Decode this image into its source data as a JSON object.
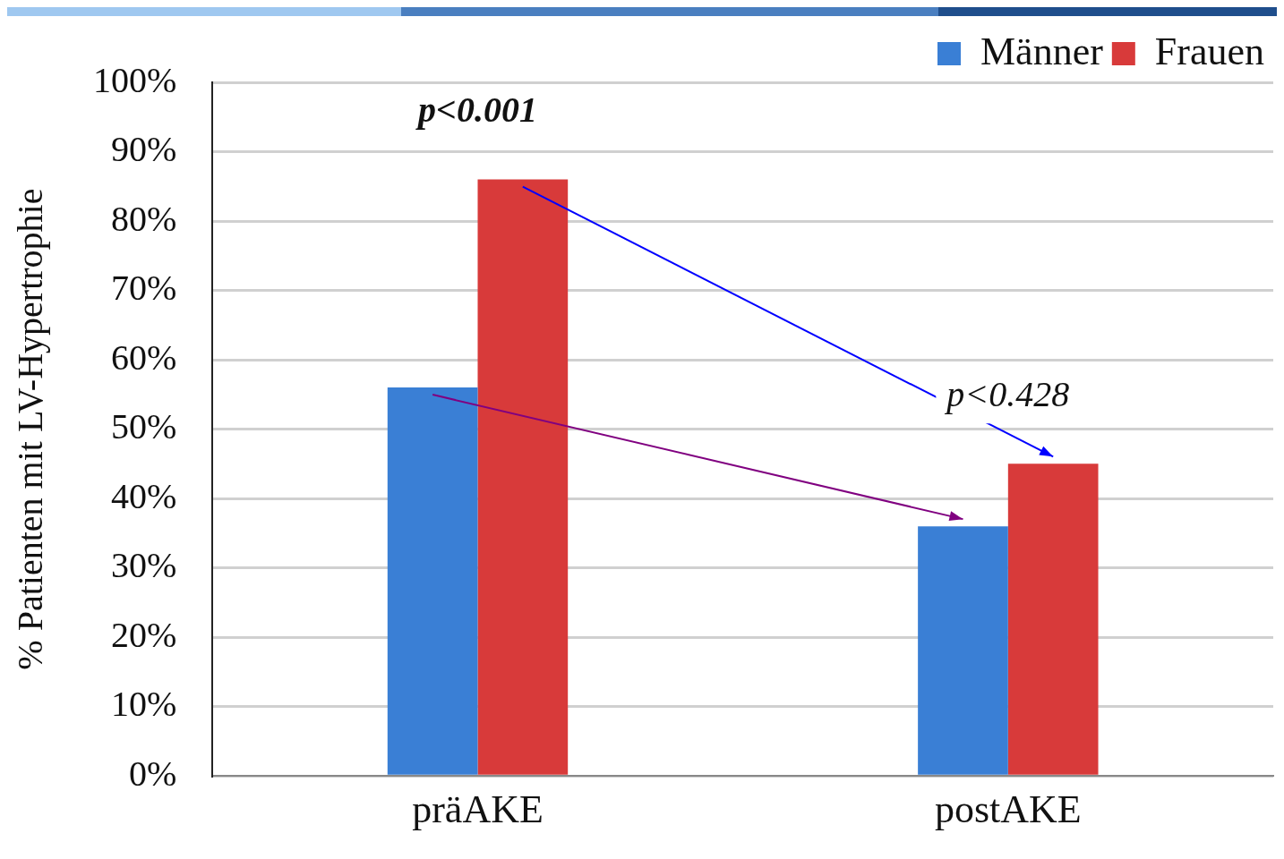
{
  "chart_data": {
    "type": "bar",
    "ylabel": "% Patienten mit LV-Hypertrophie",
    "categories": [
      "präAKE",
      "postAKE"
    ],
    "series": [
      {
        "name": "Männer",
        "color": "#3a7fd5",
        "values": [
          56,
          36
        ]
      },
      {
        "name": "Frauen",
        "color": "#d83a3a",
        "values": [
          86,
          45
        ]
      }
    ],
    "ylim": [
      0,
      100
    ],
    "yticks": [
      {
        "value": 0,
        "label": "0%"
      },
      {
        "value": 10,
        "label": "10%"
      },
      {
        "value": 20,
        "label": "20%"
      },
      {
        "value": 30,
        "label": "30%"
      },
      {
        "value": 40,
        "label": "40%"
      },
      {
        "value": 50,
        "label": "50%"
      },
      {
        "value": 60,
        "label": "60%"
      },
      {
        "value": 70,
        "label": "70%"
      },
      {
        "value": 80,
        "label": "80%"
      },
      {
        "value": 90,
        "label": "90%"
      },
      {
        "value": 100,
        "label": "100%"
      }
    ],
    "grid": "y",
    "legend": "top right",
    "annotations": [
      "p<0.001",
      "p<0.428"
    ]
  }
}
